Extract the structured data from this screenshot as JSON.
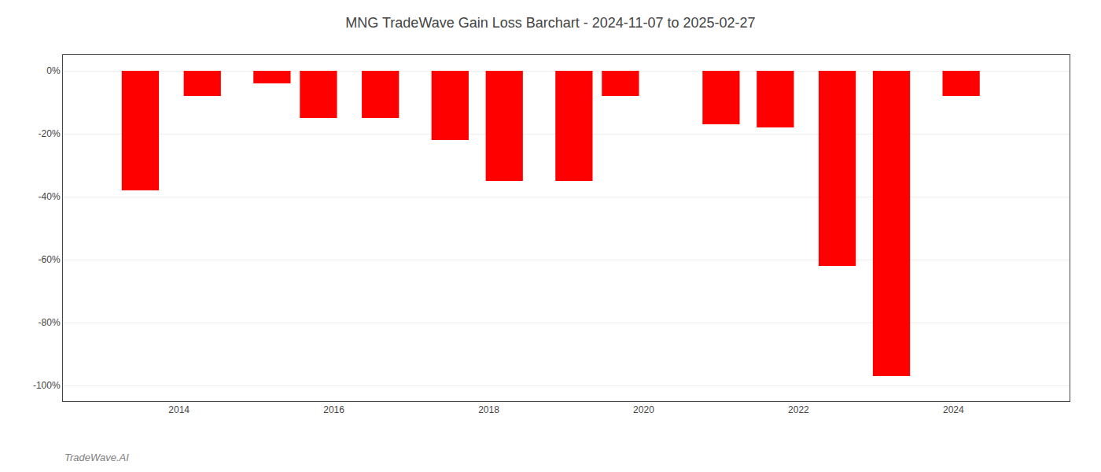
{
  "chart_data": {
    "type": "bar",
    "title": "MNG TradeWave Gain Loss Barchart - 2024-11-07 to 2025-02-27",
    "annotations": [
      "TradeWave.AI"
    ],
    "x": [
      2013.5,
      2014.3,
      2015.2,
      2015.8,
      2016.6,
      2017.5,
      2018.2,
      2019.1,
      2019.7,
      2021.0,
      2021.7,
      2022.5,
      2023.2,
      2024.1
    ],
    "values": [
      -38,
      -8,
      -4,
      -15,
      -15,
      -22,
      -35,
      -35,
      -8,
      -17,
      -18,
      -62,
      -97,
      -8
    ],
    "color": "#ff0000",
    "xlim": [
      2012.5,
      2025.5
    ],
    "xticks": [
      2014,
      2016,
      2018,
      2020,
      2022,
      2024
    ],
    "ylim": [
      -105,
      5
    ],
    "yticks": [
      {
        "value": 0,
        "label": "0%"
      },
      {
        "value": -20,
        "label": "-20%"
      },
      {
        "value": -40,
        "label": "-40%"
      },
      {
        "value": -60,
        "label": "-60%"
      },
      {
        "value": -80,
        "label": "-80%"
      },
      {
        "value": -100,
        "label": "-100%"
      }
    ],
    "grid": true
  }
}
